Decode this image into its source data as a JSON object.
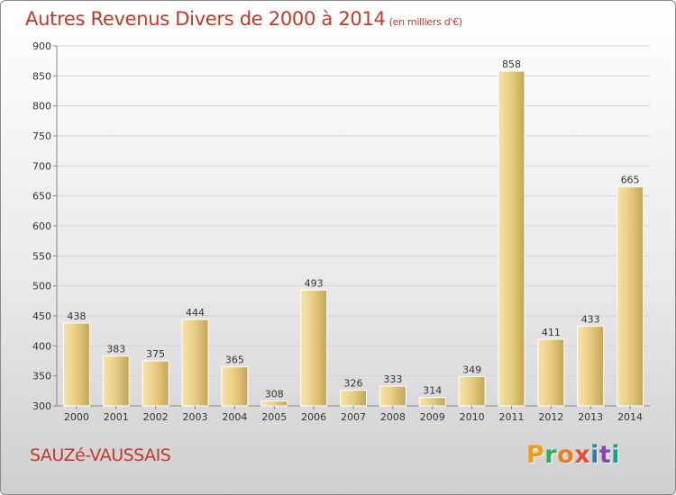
{
  "title": "Autres Revenus Divers de 2000 à 2014",
  "subtitle": "(en milliers d'€)",
  "commune": "SAUZé-VAUSSAIS",
  "logo": {
    "letters": [
      "P",
      "r",
      "o",
      "x",
      "i",
      "t",
      "i"
    ],
    "colors": [
      "#f39c12",
      "#27ae60",
      "#e67e22",
      "#e74c3c",
      "#2980b9",
      "#8e44ad",
      "#16a085"
    ]
  },
  "colors": {
    "title": "#c0392b",
    "bar_light": "#f5dfa0",
    "bar_dark": "#c9a959"
  },
  "chart_data": {
    "type": "bar",
    "categories": [
      "2000",
      "2001",
      "2002",
      "2003",
      "2004",
      "2005",
      "2006",
      "2007",
      "2008",
      "2009",
      "2010",
      "2011",
      "2012",
      "2013",
      "2014"
    ],
    "values": [
      438,
      383,
      375,
      444,
      365,
      308,
      493,
      326,
      333,
      314,
      349,
      858,
      411,
      433,
      665
    ],
    "data_labels": [
      "438",
      "383",
      "375",
      "444",
      "365",
      "308",
      "493",
      "326",
      "333",
      "314",
      "349",
      "858",
      "411",
      "433",
      "665"
    ],
    "ylim": [
      300,
      900
    ],
    "yticks": [
      300,
      350,
      400,
      450,
      500,
      550,
      600,
      650,
      700,
      750,
      800,
      850,
      900
    ],
    "grid": true,
    "legend": "none"
  }
}
